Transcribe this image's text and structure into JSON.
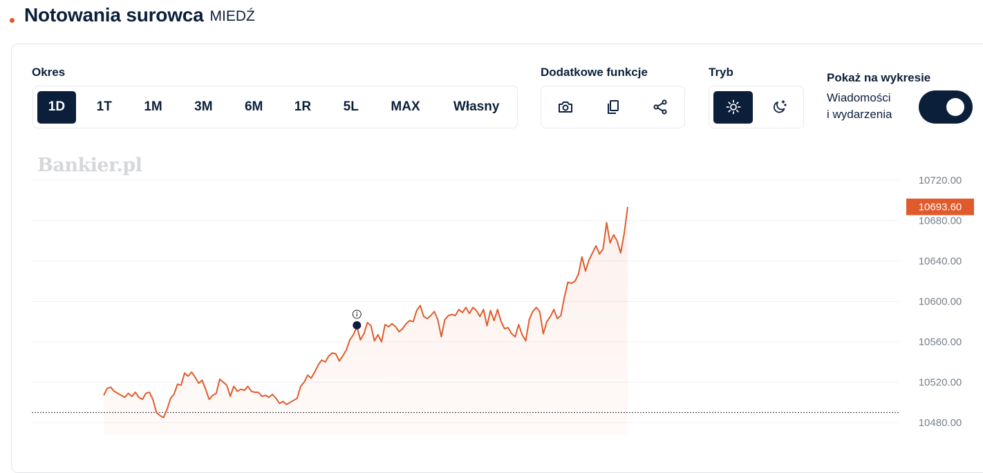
{
  "header": {
    "title": "Notowania surowca",
    "subtitle": "MIEDŹ"
  },
  "toolbar": {
    "period_label": "Okres",
    "periods": [
      "1D",
      "1T",
      "1M",
      "3M",
      "6M",
      "1R",
      "5L",
      "MAX",
      "Własny"
    ],
    "active_period": "1D",
    "extra_label": "Dodatkowe funkcje",
    "extra_icons": [
      "camera-icon",
      "copy-icon",
      "share-icon"
    ],
    "mode_label": "Tryb",
    "mode_icons": [
      "sun-icon",
      "moon-icon"
    ],
    "show_label": "Pokaż na wykresie",
    "toggle_line1": "Wiadomości",
    "toggle_line2": "i wydarzenia",
    "toggle_on": true
  },
  "watermark": "Bankier.pl",
  "colors": {
    "accent": "#e05a2b",
    "navy": "#0b1f3a"
  },
  "chart_data": {
    "type": "line",
    "yticks": [
      "10720.00",
      "10680.00",
      "10640.00",
      "10600.00",
      "10560.00",
      "10520.00",
      "10480.00"
    ],
    "ylim": [
      10480,
      10720
    ],
    "last_value": "10693.60",
    "reference_value": 10490,
    "series": [
      {
        "values": [
          10507,
          10514,
          10515,
          10511,
          10509,
          10507,
          10505,
          10509,
          10506,
          10510,
          10505,
          10503,
          10509,
          10510,
          10503,
          10490,
          10487,
          10485,
          10493,
          10504,
          10508,
          10518,
          10517,
          10529,
          10526,
          10530,
          10525,
          10519,
          10522,
          10513,
          10503,
          10507,
          10509,
          10523,
          10520,
          10517,
          10506,
          10516,
          10511,
          10513,
          10512,
          10516,
          10511,
          10510,
          10510,
          10506,
          10507,
          10505,
          10508,
          10504,
          10499,
          10501,
          10498,
          10500,
          10502,
          10504,
          10516,
          10520,
          10527,
          10524,
          10530,
          10537,
          10542,
          10540,
          10546,
          10549,
          10548,
          10541,
          10546,
          10552,
          10562,
          10567,
          10575,
          10562,
          10568,
          10579,
          10576,
          10561,
          10567,
          10560,
          10577,
          10575,
          10578,
          10575,
          10570,
          10573,
          10578,
          10581,
          10580,
          10591,
          10596,
          10585,
          10583,
          10586,
          10590,
          10582,
          10565,
          10582,
          10586,
          10587,
          10586,
          10592,
          10589,
          10594,
          10588,
          10594,
          10591,
          10585,
          10592,
          10576,
          10591,
          10581,
          10592,
          10580,
          10573,
          10574,
          10568,
          10565,
          10577,
          10567,
          10561,
          10582,
          10590,
          10594,
          10590,
          10568,
          10580,
          10585,
          10592,
          10583,
          10586,
          10604,
          10619,
          10618,
          10620,
          10627,
          10644,
          10630,
          10641,
          10648,
          10655,
          10647,
          10652,
          10678,
          10658,
          10666,
          10660,
          10648,
          10667,
          10693.6
        ]
      }
    ],
    "event_marker": {
      "value": 10575
    }
  }
}
